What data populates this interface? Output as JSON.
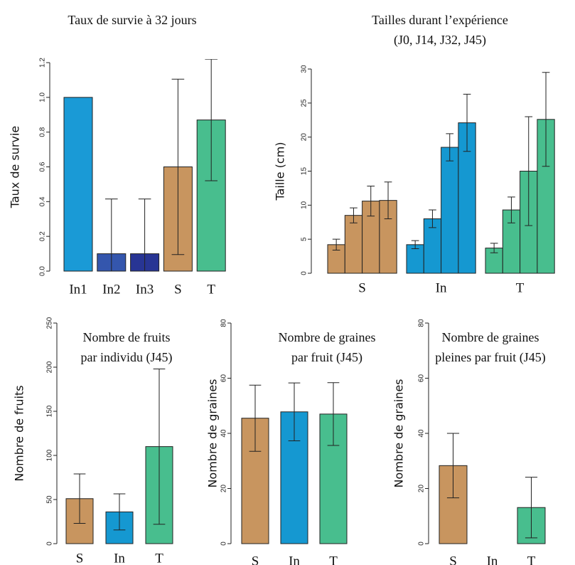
{
  "chart_data": [
    {
      "type": "bar",
      "title": [
        "Taux de survie à 32 jours"
      ],
      "ylabel": "Taux de survie",
      "categories": [
        "In1",
        "In2",
        "In3",
        "S",
        "T"
      ],
      "values": [
        1.0,
        0.1,
        0.1,
        0.6,
        0.87
      ],
      "errors": [
        null,
        0.315,
        0.315,
        0.505,
        0.35
      ],
      "colors": [
        "#1a9ad6",
        "#3456ad",
        "#283594",
        "#c8955f",
        "#48be8e"
      ],
      "ylim": [
        0,
        1.2
      ],
      "yticks": [
        {
          "value": 0,
          "label": "0.0"
        },
        0.2,
        0.4,
        0.6,
        0.8,
        {
          "value": 1,
          "label": "1.0"
        },
        1.2
      ]
    },
    {
      "type": "grouped_bar",
      "title": [
        "Tailles  durant l’expérience",
        "(J0, J14, J32, J45)"
      ],
      "ylabel": "Taille (cm)",
      "categories": [
        "S",
        "In",
        "T"
      ],
      "values": [
        [
          4.2,
          8.5,
          10.6,
          10.7
        ],
        [
          4.2,
          8.0,
          18.5,
          22.1
        ],
        [
          3.7,
          9.3,
          15.0,
          22.6
        ]
      ],
      "errors": [
        [
          0.8,
          1.1,
          2.2,
          2.7
        ],
        [
          0.6,
          1.3,
          2.0,
          4.2
        ],
        [
          0.7,
          1.9,
          8.0,
          6.9
        ]
      ],
      "colors": [
        "#c8955f",
        "#1598d1",
        "#48be8e"
      ],
      "ylim": [
        0,
        30
      ],
      "yticks": [
        0,
        5,
        10,
        15,
        20,
        25,
        30
      ]
    },
    {
      "type": "bar",
      "title": [
        "Nombre de fruits",
        "par individu (J45)"
      ],
      "ylabel": "Nombre de fruits",
      "categories": [
        "S",
        "In",
        "T"
      ],
      "values": [
        51,
        36,
        110
      ],
      "errors": [
        28,
        20.5,
        88
      ],
      "colors": [
        "#c8955f",
        "#1598d1",
        "#48be8e"
      ],
      "ylim": [
        0,
        250
      ],
      "yticks": [
        0,
        50,
        100,
        150,
        200,
        250
      ]
    },
    {
      "type": "bar",
      "title": [
        "Nombre de graines",
        "par fruit (J45)"
      ],
      "ylabel": "Nombre de graines",
      "categories": [
        "S",
        "In",
        "T"
      ],
      "values": [
        45.5,
        47.8,
        47
      ],
      "errors": [
        12,
        10.5,
        11.4
      ],
      "colors": [
        "#c8955f",
        "#1598d1",
        "#48be8e"
      ],
      "ylim": [
        0,
        80
      ],
      "yticks": [
        0,
        20,
        40,
        60,
        80
      ]
    },
    {
      "type": "bar",
      "title": [
        "Nombre de graines",
        "pleines par fruit (J45)"
      ],
      "ylabel": "Nombre de graines",
      "categories": [
        "S",
        "In",
        "T"
      ],
      "values": [
        28.3,
        0,
        13.1
      ],
      "errors": [
        11.7,
        null,
        11
      ],
      "colors": [
        "#c8955f",
        "#1598d1",
        "#48be8e"
      ],
      "ylim": [
        0,
        80
      ],
      "yticks": [
        0,
        20,
        40,
        60,
        80
      ]
    }
  ]
}
